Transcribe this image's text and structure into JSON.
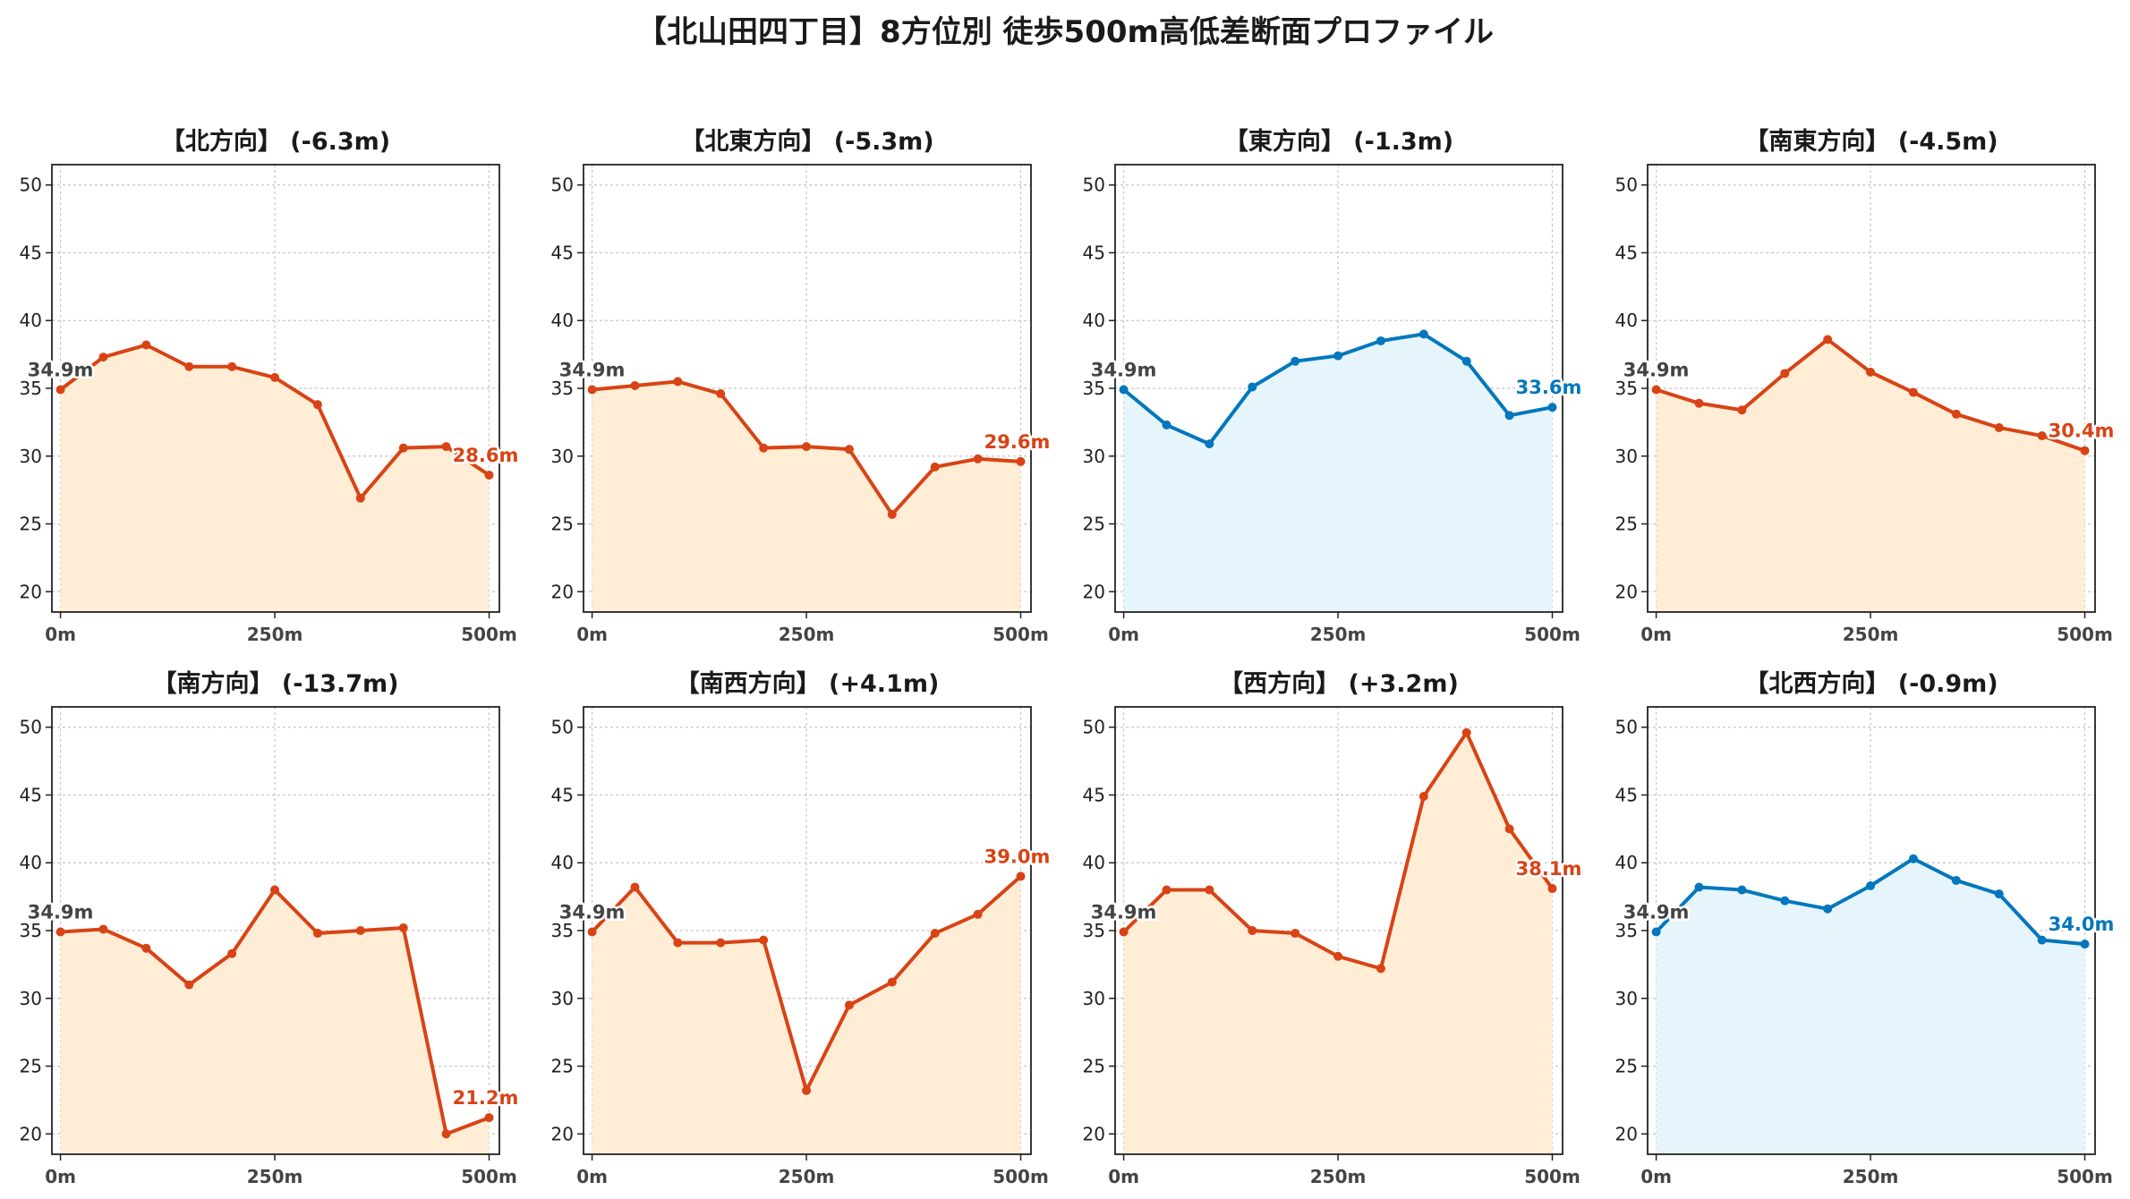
{
  "title": "【北山田四丁目】8方位別 徒歩500m高低差断面プロファイル",
  "colors": {
    "down_line": "#d84315",
    "down_fill": "#ffedd5",
    "up_line": "#0277bd",
    "up_fill": "#e6f5fc",
    "start_label": "#444444"
  },
  "chart_data": [
    {
      "type": "area",
      "title": "【北方向】 (-6.3m)",
      "trend": "down",
      "x": [
        0,
        50,
        100,
        150,
        200,
        250,
        300,
        350,
        400,
        450,
        500
      ],
      "values": [
        34.9,
        37.3,
        38.2,
        36.6,
        36.6,
        35.8,
        33.8,
        26.9,
        30.6,
        30.7,
        28.6
      ],
      "start_label": "34.9m",
      "end_label": "28.6m",
      "xticks": [
        "0m",
        "250m",
        "500m"
      ],
      "xtick_values": [
        0,
        250,
        500
      ],
      "yticks": [
        "20",
        "25",
        "30",
        "35",
        "40",
        "45",
        "50"
      ],
      "ylim": [
        18.5,
        51.5
      ],
      "xlim": [
        -10,
        512
      ],
      "grid": true
    },
    {
      "type": "area",
      "title": "【北東方向】 (-5.3m)",
      "trend": "down",
      "x": [
        0,
        50,
        100,
        150,
        200,
        250,
        300,
        350,
        400,
        450,
        500
      ],
      "values": [
        34.9,
        35.2,
        35.5,
        34.6,
        30.6,
        30.7,
        30.5,
        25.7,
        29.2,
        29.8,
        29.6
      ],
      "start_label": "34.9m",
      "end_label": "29.6m",
      "xticks": [
        "0m",
        "250m",
        "500m"
      ],
      "xtick_values": [
        0,
        250,
        500
      ],
      "yticks": [
        "20",
        "25",
        "30",
        "35",
        "40",
        "45",
        "50"
      ],
      "ylim": [
        18.5,
        51.5
      ],
      "xlim": [
        -10,
        512
      ],
      "grid": true
    },
    {
      "type": "area",
      "title": "【東方向】 (-1.3m)",
      "trend": "up",
      "x": [
        0,
        50,
        100,
        150,
        200,
        250,
        300,
        350,
        400,
        450,
        500
      ],
      "values": [
        34.9,
        32.3,
        30.9,
        35.1,
        37.0,
        37.4,
        38.5,
        39.0,
        37.0,
        33.0,
        33.6
      ],
      "start_label": "34.9m",
      "end_label": "33.6m",
      "xticks": [
        "0m",
        "250m",
        "500m"
      ],
      "xtick_values": [
        0,
        250,
        500
      ],
      "yticks": [
        "20",
        "25",
        "30",
        "35",
        "40",
        "45",
        "50"
      ],
      "ylim": [
        18.5,
        51.5
      ],
      "xlim": [
        -10,
        512
      ],
      "grid": true
    },
    {
      "type": "area",
      "title": "【南東方向】 (-4.5m)",
      "trend": "down",
      "x": [
        0,
        50,
        100,
        150,
        200,
        250,
        300,
        350,
        400,
        450,
        500
      ],
      "values": [
        34.9,
        33.9,
        33.4,
        36.1,
        38.6,
        36.2,
        34.7,
        33.1,
        32.1,
        31.5,
        30.4
      ],
      "start_label": "34.9m",
      "end_label": "30.4m",
      "xticks": [
        "0m",
        "250m",
        "500m"
      ],
      "xtick_values": [
        0,
        250,
        500
      ],
      "yticks": [
        "20",
        "25",
        "30",
        "35",
        "40",
        "45",
        "50"
      ],
      "ylim": [
        18.5,
        51.5
      ],
      "xlim": [
        -10,
        512
      ],
      "grid": true
    },
    {
      "type": "area",
      "title": "【南方向】 (-13.7m)",
      "trend": "down",
      "x": [
        0,
        50,
        100,
        150,
        200,
        250,
        300,
        350,
        400,
        450,
        500
      ],
      "values": [
        34.9,
        35.1,
        33.7,
        31.0,
        33.3,
        38.0,
        34.8,
        35.0,
        35.2,
        20.0,
        21.2
      ],
      "start_label": "34.9m",
      "end_label": "21.2m",
      "xticks": [
        "0m",
        "250m",
        "500m"
      ],
      "xtick_values": [
        0,
        250,
        500
      ],
      "yticks": [
        "20",
        "25",
        "30",
        "35",
        "40",
        "45",
        "50"
      ],
      "ylim": [
        18.5,
        51.5
      ],
      "xlim": [
        -10,
        512
      ],
      "grid": true
    },
    {
      "type": "area",
      "title": "【南西方向】 (+4.1m)",
      "trend": "down",
      "x": [
        0,
        50,
        100,
        150,
        200,
        250,
        300,
        350,
        400,
        450,
        500
      ],
      "values": [
        34.9,
        38.2,
        34.1,
        34.1,
        34.3,
        23.2,
        29.5,
        31.2,
        34.8,
        36.2,
        39.0
      ],
      "start_label": "34.9m",
      "end_label": "39.0m",
      "xticks": [
        "0m",
        "250m",
        "500m"
      ],
      "xtick_values": [
        0,
        250,
        500
      ],
      "yticks": [
        "20",
        "25",
        "30",
        "35",
        "40",
        "45",
        "50"
      ],
      "ylim": [
        18.5,
        51.5
      ],
      "xlim": [
        -10,
        512
      ],
      "grid": true
    },
    {
      "type": "area",
      "title": "【西方向】 (+3.2m)",
      "trend": "down",
      "x": [
        0,
        50,
        100,
        150,
        200,
        250,
        300,
        350,
        400,
        450,
        500
      ],
      "values": [
        34.9,
        38.0,
        38.0,
        35.0,
        34.8,
        33.1,
        32.2,
        44.9,
        49.6,
        42.5,
        38.1
      ],
      "start_label": "34.9m",
      "end_label": "38.1m",
      "xticks": [
        "0m",
        "250m",
        "500m"
      ],
      "xtick_values": [
        0,
        250,
        500
      ],
      "yticks": [
        "20",
        "25",
        "30",
        "35",
        "40",
        "45",
        "50"
      ],
      "ylim": [
        18.5,
        51.5
      ],
      "xlim": [
        -10,
        512
      ],
      "grid": true
    },
    {
      "type": "area",
      "title": "【北西方向】 (-0.9m)",
      "trend": "up",
      "x": [
        0,
        50,
        100,
        150,
        200,
        250,
        300,
        350,
        400,
        450,
        500
      ],
      "values": [
        34.9,
        38.2,
        38.0,
        37.2,
        36.6,
        38.3,
        40.3,
        38.7,
        37.7,
        34.3,
        34.0
      ],
      "start_label": "34.9m",
      "end_label": "34.0m",
      "xticks": [
        "0m",
        "250m",
        "500m"
      ],
      "xtick_values": [
        0,
        250,
        500
      ],
      "yticks": [
        "20",
        "25",
        "30",
        "35",
        "40",
        "45",
        "50"
      ],
      "ylim": [
        18.5,
        51.5
      ],
      "xlim": [
        -10,
        512
      ],
      "grid": true
    }
  ]
}
